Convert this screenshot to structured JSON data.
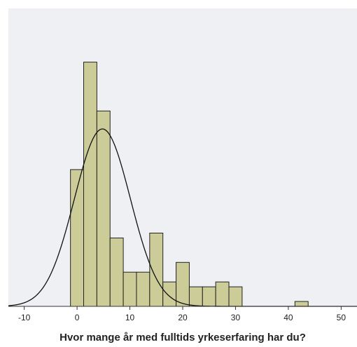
{
  "chart_data": {
    "type": "histogram",
    "title": "Hvor mange år med fulltids yrkeserfaring har du?",
    "bins": [
      -1.25,
      1.25,
      3.75,
      6.25,
      8.75,
      11.25,
      13.75,
      16.25,
      18.75,
      21.25,
      23.75,
      26.25,
      28.75,
      31.25,
      33.75,
      36.25,
      38.75,
      41.25,
      43.75
    ],
    "counts": [
      28,
      50,
      40,
      14,
      7,
      7,
      15,
      5,
      9,
      4,
      4,
      5,
      4,
      0,
      0,
      0,
      0,
      1
    ],
    "color": "#cccc99",
    "curve": {
      "mean": 4.8,
      "sd": 5.3
    },
    "xlim": [
      -13,
      53
    ],
    "xticks": [
      -10,
      0,
      10,
      20,
      30,
      40,
      50
    ],
    "ylim": [
      0,
      61
    ]
  }
}
